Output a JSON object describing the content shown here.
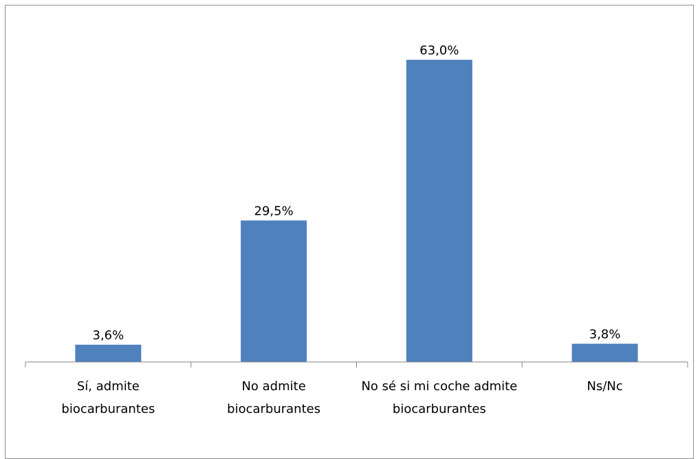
{
  "chart_data": {
    "type": "bar",
    "categories": [
      "Sí, admite biocarburantes",
      "No admite biocarburantes",
      "No sé si mi coche admite biocarburantes",
      "Ns/Nc"
    ],
    "values": [
      3.6,
      29.5,
      63.0,
      3.8
    ],
    "value_labels": [
      "3,6%",
      "29,5%",
      "63,0%",
      "3,8%"
    ],
    "color": "#4f81bd"
  }
}
